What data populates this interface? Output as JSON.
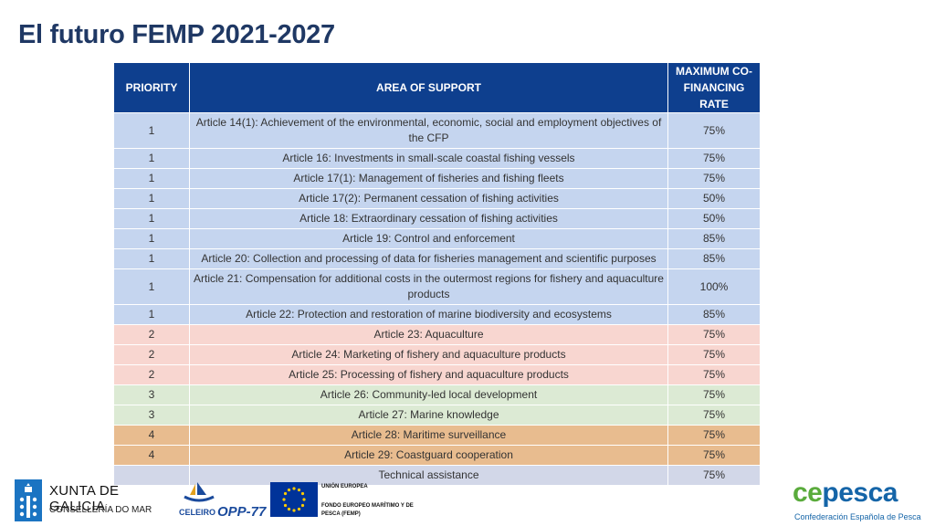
{
  "title": "El futuro FEMP 2021-2027",
  "table": {
    "headers": {
      "priority": "PRIORITY",
      "area": "AREA OF SUPPORT",
      "rate": "MAXIMUM CO-FINANCING RATE"
    },
    "rows": [
      {
        "priority": "1",
        "area": "Article 14(1): Achievement of the environmental, economic, social and employment objectives of the CFP",
        "rate": "75%"
      },
      {
        "priority": "1",
        "area": "Article 16: Investments in small-scale coastal fishing vessels",
        "rate": "75%"
      },
      {
        "priority": "1",
        "area": "Article 17(1): Management of fisheries and fishing fleets",
        "rate": "75%"
      },
      {
        "priority": "1",
        "area": "Article 17(2): Permanent cessation of fishing activities",
        "rate": "50%"
      },
      {
        "priority": "1",
        "area": "Article 18: Extraordinary cessation of fishing activities",
        "rate": "50%"
      },
      {
        "priority": "1",
        "area": "Article 19: Control and enforcement",
        "rate": "85%"
      },
      {
        "priority": "1",
        "area": "Article 20: Collection and processing of data for fisheries management and scientific purposes",
        "rate": "85%"
      },
      {
        "priority": "1",
        "area": "Article 21: Compensation for additional costs in the outermost regions for fishery and aquaculture products",
        "rate": "100%"
      },
      {
        "priority": "1",
        "area": "Article 22: Protection and restoration of marine biodiversity and ecosystems",
        "rate": "85%"
      },
      {
        "priority": "2",
        "area": "Article 23: Aquaculture",
        "rate": "75%"
      },
      {
        "priority": "2",
        "area": "Article 24: Marketing of fishery and aquaculture products",
        "rate": "75%"
      },
      {
        "priority": "2",
        "area": "Article 25: Processing of fishery and aquaculture products",
        "rate": "75%"
      },
      {
        "priority": "3",
        "area": "Article 26: Community-led local development",
        "rate": "75%"
      },
      {
        "priority": "3",
        "area": "Article 27: Marine knowledge",
        "rate": "75%"
      },
      {
        "priority": "4",
        "area": "Article 28: Maritime surveillance",
        "rate": "75%"
      },
      {
        "priority": "4",
        "area": "Article 29: Coastguard cooperation",
        "rate": "75%"
      },
      {
        "priority": "",
        "area": "Technical assistance",
        "rate": "75%"
      }
    ]
  },
  "colors": {
    "header": "#0e3f8e",
    "priority_1": "#c5d5ef",
    "priority_2": "#f8d6d0",
    "priority_3": "#dcead4",
    "priority_4": "#e8bc8f",
    "technical": "#d2d7e8"
  },
  "footer": {
    "xunta": {
      "name": "XUNTA DE GALICIA",
      "sub": "CONSELLERÍA DO MAR"
    },
    "celeiro": {
      "name": "CELEIRO",
      "opp": "OPP-77"
    },
    "eu": {
      "line1": "UNIÓN EUROPEA",
      "line2": "FONDO EUROPEO MARÍTIMO Y DE PESCA (FEMP)"
    },
    "cepesca": {
      "logo_a": "ce",
      "logo_b": "pesca",
      "sub": "Confederación Española de Pesca"
    }
  }
}
